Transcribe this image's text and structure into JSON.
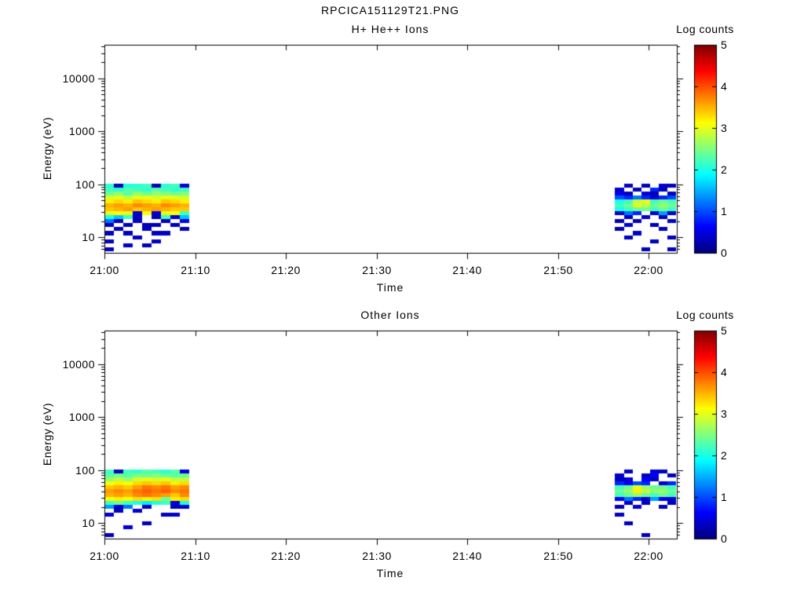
{
  "page_title": "RPCICA151129T21.PNG",
  "colormap_stops": {
    "positions": [
      0,
      0.125,
      0.375,
      0.625,
      0.875,
      1
    ],
    "colors": [
      "#00007F",
      "#0000FF",
      "#00FFFF",
      "#FFFF00",
      "#FF0000",
      "#7F0000"
    ]
  },
  "chart_data": [
    {
      "type": "heatmap",
      "title": "H+ He++ Ions",
      "xlabel": "Time",
      "ylabel": "Energy (eV)",
      "x_axis": {
        "tick_labels": [
          "21:00",
          "21:10",
          "21:20",
          "21:30",
          "21:40",
          "21:50",
          "22:00"
        ],
        "tick_minutes": [
          0,
          10,
          20,
          30,
          40,
          50,
          60
        ],
        "range_minutes": [
          0,
          63.1
        ]
      },
      "y_axis": {
        "scale": "log",
        "tick_labels": [
          "10",
          "100",
          "1000",
          "10000"
        ],
        "tick_values": [
          10,
          100,
          1000,
          10000
        ],
        "range_ev": [
          5.1,
          43000
        ]
      },
      "colorbar": {
        "title": "Log counts",
        "tick_labels": [
          "0",
          "1",
          "2",
          "3",
          "4",
          "5"
        ],
        "tick_values": [
          0,
          1,
          2,
          3,
          4,
          5
        ],
        "range": [
          0,
          5
        ],
        "colormap": "jet"
      },
      "cells": {
        "blobs": [
          {
            "t_start_min": 0,
            "t_step_min": 1.04,
            "energies_ev": [
              95,
              80,
              67,
              57,
              48,
              40,
              34,
              29,
              24,
              20,
              17,
              14.5,
              12,
              10,
              8.5,
              7,
              6
            ],
            "values": [
              [
                2.1,
                0.3,
                2.0,
                2.1,
                2.2,
                0.3,
                2.1,
                2.2,
                0.4
              ],
              [
                2.2,
                2.1,
                2.3,
                2.2,
                2.1,
                2.3,
                2.2,
                2.1,
                2.2
              ],
              [
                2.4,
                2.6,
                2.3,
                2.6,
                2.4,
                2.6,
                2.5,
                2.4,
                2.5
              ],
              [
                2.9,
                3.0,
                2.8,
                3.0,
                3.0,
                2.9,
                3.0,
                3.0,
                2.9
              ],
              [
                3.2,
                3.3,
                3.2,
                3.4,
                3.3,
                3.2,
                3.4,
                3.3,
                3.2
              ],
              [
                3.5,
                3.6,
                3.5,
                3.7,
                3.6,
                3.5,
                3.7,
                3.6,
                3.5
              ],
              [
                3.4,
                3.5,
                3.6,
                3.4,
                3.5,
                3.6,
                3.5,
                3.4,
                3.4
              ],
              [
                3.0,
                3.1,
                3.0,
                0.4,
                3.1,
                0.4,
                3.0,
                3.1,
                2.2
              ],
              [
                2.0,
                1.6,
                2.2,
                0.3,
                null,
                0.3,
                2.2,
                0.4,
                1.6
              ],
              [
                1.2,
                0.3,
                null,
                0.3,
                null,
                null,
                0.3,
                null,
                0.5
              ],
              [
                0.3,
                null,
                0.3,
                null,
                0.3,
                0.3,
                null,
                0.3,
                null
              ],
              [
                null,
                0.3,
                null,
                null,
                0.3,
                null,
                null,
                null,
                0.3
              ],
              [
                0.3,
                null,
                0.3,
                null,
                null,
                0.3,
                0.3,
                null,
                null
              ],
              [
                null,
                null,
                null,
                0.3,
                null,
                null,
                null,
                null,
                null
              ],
              [
                0.3,
                null,
                null,
                null,
                null,
                0.3,
                null,
                null,
                null
              ],
              [
                null,
                null,
                0.3,
                null,
                0.3,
                null,
                null,
                null,
                null
              ],
              [
                0.3,
                null,
                null,
                null,
                null,
                null,
                null,
                null,
                null
              ]
            ]
          },
          {
            "t_start_min": 56.3,
            "t_step_min": 0.96,
            "energies_ev": [
              95,
              80,
              67,
              57,
              48,
              40,
              34,
              29,
              24,
              20,
              17,
              14.5,
              12,
              10,
              8.5,
              7,
              6
            ],
            "values": [
              [
                null,
                0.3,
                null,
                0.3,
                null,
                0.4,
                0.3
              ],
              [
                0.4,
                null,
                0.3,
                null,
                0.8,
                0.3,
                null
              ],
              [
                0.5,
                0.3,
                null,
                0.4,
                0.3,
                null,
                0.3
              ],
              [
                1.0,
                0.8,
                1.2,
                0.8,
                0.4,
                0.8,
                1.0
              ],
              [
                2.0,
                2.2,
                2.8,
                3.0,
                2.2,
                2.4,
                2.2
              ],
              [
                2.2,
                2.4,
                3.0,
                2.8,
                2.4,
                2.6,
                2.4
              ],
              [
                2.0,
                2.2,
                2.4,
                2.4,
                2.2,
                2.4,
                2.2
              ],
              [
                0.4,
                1.2,
                0.8,
                null,
                0.4,
                1.4,
                0.4
              ],
              [
                null,
                0.3,
                null,
                0.4,
                null,
                0.3,
                null
              ],
              [
                0.3,
                null,
                0.3,
                null,
                null,
                null,
                0.4
              ],
              [
                null,
                0.4,
                null,
                null,
                0.3,
                null,
                null
              ],
              [
                0.3,
                null,
                null,
                null,
                null,
                0.3,
                null
              ],
              [
                null,
                null,
                0.3,
                null,
                null,
                null,
                null
              ],
              [
                null,
                0.3,
                null,
                null,
                null,
                null,
                0.3
              ],
              [
                null,
                null,
                null,
                null,
                0.3,
                null,
                null
              ],
              [
                null,
                null,
                null,
                null,
                null,
                null,
                null
              ],
              [
                null,
                null,
                null,
                0.3,
                null,
                null,
                0.3
              ]
            ]
          }
        ]
      }
    },
    {
      "type": "heatmap",
      "title": "Other Ions",
      "xlabel": "Time",
      "ylabel": "Energy (eV)",
      "x_axis": {
        "tick_labels": [
          "21:00",
          "21:10",
          "21:20",
          "21:30",
          "21:40",
          "21:50",
          "22:00"
        ],
        "tick_minutes": [
          0,
          10,
          20,
          30,
          40,
          50,
          60
        ],
        "range_minutes": [
          0,
          63.1
        ]
      },
      "y_axis": {
        "scale": "log",
        "tick_labels": [
          "10",
          "100",
          "1000",
          "10000"
        ],
        "tick_values": [
          10,
          100,
          1000,
          10000
        ],
        "range_ev": [
          5.1,
          43000
        ]
      },
      "colorbar": {
        "title": "Log counts",
        "tick_labels": [
          "0",
          "1",
          "2",
          "3",
          "4",
          "5"
        ],
        "tick_values": [
          0,
          1,
          2,
          3,
          4,
          5
        ],
        "range": [
          0,
          5
        ],
        "colormap": "jet"
      },
      "cells": {
        "blobs": [
          {
            "t_start_min": 0,
            "t_step_min": 1.04,
            "energies_ev": [
              95,
              80,
              67,
              57,
              48,
              40,
              34,
              29,
              24,
              20,
              17,
              14.5,
              12,
              10,
              8.5,
              7,
              6
            ],
            "values": [
              [
                2.2,
                0.3,
                2.2,
                2.1,
                2.3,
                2.2,
                2.1,
                2.3,
                0.4
              ],
              [
                2.3,
                2.4,
                2.3,
                2.5,
                2.4,
                2.5,
                2.4,
                2.3,
                2.4
              ],
              [
                2.6,
                2.8,
                2.6,
                2.9,
                3.0,
                2.9,
                3.0,
                2.8,
                2.8
              ],
              [
                3.1,
                3.2,
                3.1,
                3.3,
                3.4,
                3.3,
                3.4,
                3.2,
                3.3
              ],
              [
                3.4,
                3.5,
                3.4,
                3.6,
                3.8,
                3.7,
                3.8,
                3.6,
                3.7
              ],
              [
                3.6,
                3.7,
                3.6,
                3.8,
                3.9,
                3.8,
                3.9,
                3.7,
                3.8
              ],
              [
                3.5,
                3.6,
                3.5,
                3.7,
                3.8,
                3.7,
                3.6,
                3.4,
                3.7
              ],
              [
                3.1,
                3.2,
                3.1,
                3.3,
                3.2,
                3.3,
                2.4,
                3.2,
                3.3
              ],
              [
                2.2,
                2.4,
                2.2,
                2.0,
                1.8,
                2.0,
                2.2,
                0.4,
                2.0
              ],
              [
                1.4,
                0.4,
                1.2,
                null,
                0.3,
                null,
                null,
                0.3,
                0.4
              ],
              [
                null,
                0.3,
                null,
                0.4,
                null,
                null,
                null,
                null,
                null
              ],
              [
                0.4,
                null,
                null,
                null,
                null,
                null,
                0.3,
                0.4,
                null
              ],
              [
                null,
                null,
                null,
                null,
                null,
                null,
                null,
                null,
                null
              ],
              [
                null,
                null,
                null,
                null,
                0.3,
                null,
                null,
                null,
                null
              ],
              [
                null,
                null,
                0.4,
                null,
                null,
                null,
                null,
                null,
                null
              ],
              [
                null,
                null,
                null,
                null,
                null,
                null,
                null,
                null,
                null
              ],
              [
                0.3,
                null,
                null,
                null,
                null,
                null,
                null,
                null,
                null
              ]
            ]
          },
          {
            "t_start_min": 56.3,
            "t_step_min": 0.96,
            "energies_ev": [
              95,
              80,
              67,
              57,
              48,
              40,
              34,
              29,
              24,
              20,
              17,
              14.5,
              12,
              10,
              8.5,
              7,
              6
            ],
            "values": [
              [
                null,
                0.3,
                null,
                null,
                0.4,
                0.3,
                null
              ],
              [
                0.4,
                null,
                null,
                0.3,
                0.6,
                null,
                0.3
              ],
              [
                0.3,
                0.4,
                null,
                0.6,
                0.3,
                null,
                null
              ],
              [
                0.8,
                0.6,
                1.0,
                0.8,
                null,
                0.4,
                0.8
              ],
              [
                2.2,
                2.4,
                3.0,
                2.6,
                2.4,
                2.4,
                2.2
              ],
              [
                2.4,
                2.6,
                3.2,
                2.8,
                2.6,
                2.6,
                2.4
              ],
              [
                2.2,
                2.4,
                2.6,
                2.4,
                2.2,
                2.4,
                2.2
              ],
              [
                0.6,
                1.2,
                0.8,
                0.4,
                1.4,
                0.6,
                0.4
              ],
              [
                null,
                0.3,
                null,
                0.3,
                null,
                null,
                0.3
              ],
              [
                0.3,
                null,
                0.4,
                null,
                null,
                0.3,
                null
              ],
              [
                null,
                null,
                null,
                null,
                null,
                null,
                null
              ],
              [
                0.3,
                null,
                null,
                null,
                null,
                null,
                null
              ],
              [
                null,
                null,
                null,
                null,
                null,
                null,
                null
              ],
              [
                null,
                0.3,
                null,
                null,
                null,
                null,
                null
              ],
              [
                null,
                null,
                null,
                null,
                null,
                null,
                null
              ],
              [
                null,
                null,
                null,
                null,
                null,
                null,
                null
              ],
              [
                null,
                null,
                null,
                0.3,
                null,
                null,
                null
              ]
            ]
          }
        ]
      }
    }
  ]
}
